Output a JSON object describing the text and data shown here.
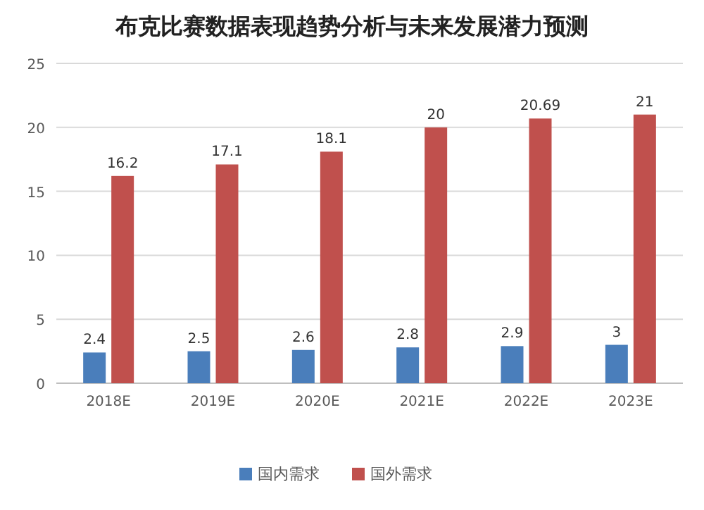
{
  "chart_data": {
    "type": "bar",
    "title": "布克比赛数据表现趋势分析与未来发展潜力预测",
    "categories": [
      "2018E",
      "2019E",
      "2020E",
      "2021E",
      "2022E",
      "2023E"
    ],
    "series": [
      {
        "name": "国内需求",
        "color": "#4a7ebb",
        "values": [
          2.4,
          2.5,
          2.6,
          2.8,
          2.9,
          3
        ]
      },
      {
        "name": "国外需求",
        "color": "#c0504d",
        "values": [
          16.2,
          17.1,
          18.1,
          20,
          20.69,
          21
        ]
      }
    ],
    "ylim": [
      0,
      25
    ],
    "yticks": [
      0,
      5,
      10,
      15,
      20,
      25
    ],
    "grid": "y",
    "legend": "bottom",
    "data_labels": true
  }
}
